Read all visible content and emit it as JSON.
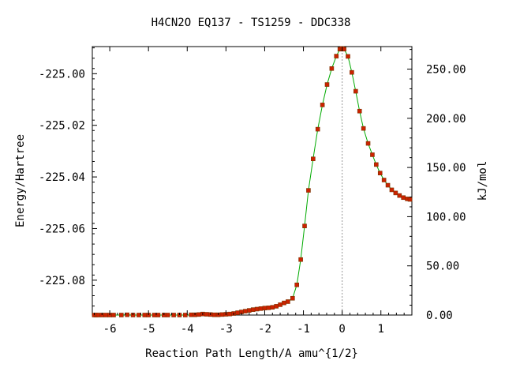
{
  "chart_data": {
    "type": "line",
    "title": "H4CN2O   EQ137 - TS1259 - DDC338",
    "xlabel": "Reaction Path Length/A amu^{1/2}",
    "ylabel": "Energy/Hartree",
    "y2label": "kJ/mol",
    "xlim": [
      -6.45,
      1.8
    ],
    "ylim": [
      -225.0935,
      -224.9895
    ],
    "y2lim": [
      0,
      272.9
    ],
    "x_ticks": [
      -6,
      -5,
      -4,
      -3,
      -2,
      -1,
      0,
      1
    ],
    "x_tick_labels": [
      "-6",
      "-5",
      "-4",
      "-3",
      "-2",
      "-1",
      "0",
      "1"
    ],
    "y_ticks": [
      -225.0,
      -225.02,
      -225.04,
      -225.06,
      -225.08
    ],
    "y_tick_labels": [
      "-225.00",
      "-225.02",
      "-225.04",
      "-225.06",
      "-225.08"
    ],
    "y2_ticks": [
      0,
      50,
      100,
      150,
      200,
      250
    ],
    "y2_tick_labels": [
      "0.00",
      "50.00",
      "100.00",
      "150.00",
      "200.00",
      "250.00"
    ],
    "transition_state_x": 0,
    "line_color": "#00aa00",
    "marker_color": "#cc2200",
    "marker_edge_color": "#7a3300",
    "vline_color": "#999999",
    "points": [
      [
        -6.4,
        -225.0935
      ],
      [
        -6.35,
        -225.0935
      ],
      [
        -6.3,
        -225.0935
      ],
      [
        -6.2,
        -225.0935
      ],
      [
        -6.1,
        -225.0935
      ],
      [
        -6.0,
        -225.0935
      ],
      [
        -5.9,
        -225.0935
      ],
      [
        -5.7,
        -225.0935
      ],
      [
        -5.55,
        -225.0934
      ],
      [
        -5.4,
        -225.0935
      ],
      [
        -5.25,
        -225.0935
      ],
      [
        -5.1,
        -225.0935
      ],
      [
        -5.0,
        -225.0935
      ],
      [
        -4.85,
        -225.0935
      ],
      [
        -4.75,
        -225.0935
      ],
      [
        -4.6,
        -225.0935
      ],
      [
        -4.5,
        -225.0935
      ],
      [
        -4.35,
        -225.0935
      ],
      [
        -4.2,
        -225.0935
      ],
      [
        -4.05,
        -225.0935
      ],
      [
        -3.9,
        -225.0934
      ],
      [
        -3.8,
        -225.0934
      ],
      [
        -3.7,
        -225.0933
      ],
      [
        -3.6,
        -225.0931
      ],
      [
        -3.5,
        -225.0932
      ],
      [
        -3.4,
        -225.0933
      ],
      [
        -3.3,
        -225.0934
      ],
      [
        -3.2,
        -225.0934
      ],
      [
        -3.1,
        -225.0933
      ],
      [
        -3.0,
        -225.0932
      ],
      [
        -2.9,
        -225.0931
      ],
      [
        -2.8,
        -225.0929
      ],
      [
        -2.7,
        -225.0926
      ],
      [
        -2.6,
        -225.0923
      ],
      [
        -2.5,
        -225.092
      ],
      [
        -2.4,
        -225.0917
      ],
      [
        -2.3,
        -225.0914
      ],
      [
        -2.2,
        -225.0912
      ],
      [
        -2.1,
        -225.091
      ],
      [
        -2.0,
        -225.0908
      ],
      [
        -1.9,
        -225.0907
      ],
      [
        -1.8,
        -225.0905
      ],
      [
        -1.7,
        -225.0901
      ],
      [
        -1.6,
        -225.0895
      ],
      [
        -1.5,
        -225.0888
      ],
      [
        -1.4,
        -225.0883
      ],
      [
        -1.28,
        -225.087
      ],
      [
        -1.17,
        -225.0818
      ],
      [
        -1.07,
        -225.072
      ],
      [
        -0.97,
        -225.059
      ],
      [
        -0.87,
        -225.0452
      ],
      [
        -0.75,
        -225.033
      ],
      [
        -0.63,
        -225.0215
      ],
      [
        -0.51,
        -225.0121
      ],
      [
        -0.39,
        -225.0042
      ],
      [
        -0.27,
        -224.998
      ],
      [
        -0.15,
        -224.9932
      ],
      [
        -0.06,
        -224.9905
      ],
      [
        0.0,
        -224.9902
      ],
      [
        0.05,
        -224.9905
      ],
      [
        0.15,
        -224.9933
      ],
      [
        0.25,
        -224.9995
      ],
      [
        0.35,
        -225.0068
      ],
      [
        0.45,
        -225.0145
      ],
      [
        0.55,
        -225.0212
      ],
      [
        0.67,
        -225.027
      ],
      [
        0.78,
        -225.0314
      ],
      [
        0.88,
        -225.0352
      ],
      [
        0.98,
        -225.0385
      ],
      [
        1.08,
        -225.0412
      ],
      [
        1.18,
        -225.0432
      ],
      [
        1.28,
        -225.045
      ],
      [
        1.38,
        -225.0462
      ],
      [
        1.48,
        -225.0472
      ],
      [
        1.58,
        -225.048
      ],
      [
        1.68,
        -225.0485
      ],
      [
        1.75,
        -225.0487
      ]
    ]
  }
}
